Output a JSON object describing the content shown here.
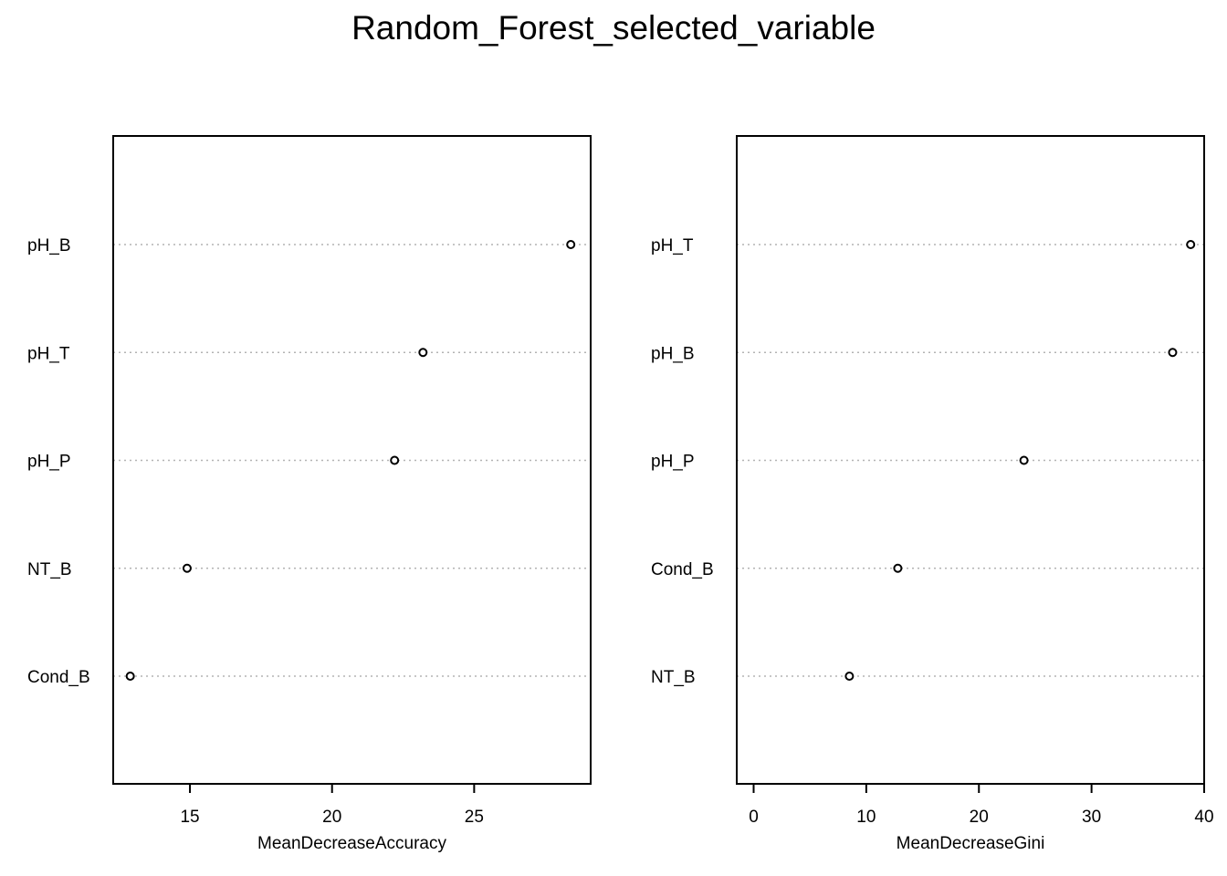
{
  "title": "Random_Forest_selected_variable",
  "chart_data": [
    {
      "type": "scatter",
      "xlabel": "MeanDecreaseAccuracy",
      "ylabel": "",
      "xlim": [
        12.3,
        29.1
      ],
      "xticks": [
        15,
        20,
        25
      ],
      "grid": "horizontal dotted",
      "categories": [
        "pH_B",
        "pH_T",
        "pH_P",
        "NT_B",
        "Cond_B"
      ],
      "values": [
        28.4,
        23.2,
        22.2,
        14.9,
        12.9
      ]
    },
    {
      "type": "scatter",
      "xlabel": "MeanDecreaseGini",
      "ylabel": "",
      "xlim": [
        -1.5,
        40.0
      ],
      "xticks": [
        0,
        10,
        20,
        30,
        40
      ],
      "grid": "horizontal dotted",
      "categories": [
        "pH_T",
        "pH_B",
        "pH_P",
        "Cond_B",
        "NT_B"
      ],
      "values": [
        38.8,
        37.2,
        24.0,
        12.8,
        8.5
      ]
    }
  ],
  "style": {
    "point_color": "#000000",
    "grid_color": "#b3b3b3"
  }
}
